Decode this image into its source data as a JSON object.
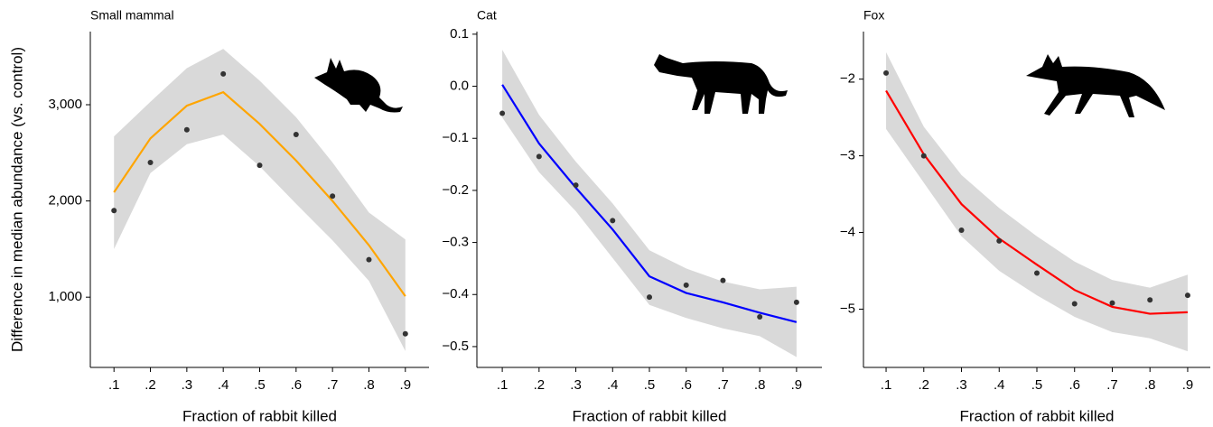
{
  "chart_data": [
    {
      "type": "line",
      "title": "Small mammal",
      "ylabel": "Difference in median abundance (vs. control)",
      "xlabel": "Fraction of rabbit killed",
      "x": [
        0.1,
        0.2,
        0.3,
        0.4,
        0.5,
        0.6,
        0.7,
        0.8,
        0.9
      ],
      "line": {
        "color": "#ffa500",
        "values": [
          2090,
          2650,
          2990,
          3130,
          2800,
          2420,
          2000,
          1540,
          1010
        ]
      },
      "points": {
        "color": "#333333",
        "values": [
          1900,
          2400,
          2740,
          3320,
          2370,
          2690,
          2050,
          1390,
          620
        ]
      },
      "band": {
        "color": "#d9d9d9",
        "upper": [
          2670,
          3030,
          3380,
          3580,
          3250,
          2870,
          2400,
          1880,
          1600
        ],
        "lower": [
          1500,
          2290,
          2590,
          2690,
          2360,
          1970,
          1590,
          1170,
          440
        ]
      },
      "xlim": [
        0.035,
        0.965
      ],
      "ylim": [
        270,
        3760
      ],
      "xticks": [
        {
          "value": 0.1,
          "label": ".1"
        },
        {
          "value": 0.2,
          "label": ".2"
        },
        {
          "value": 0.3,
          "label": ".3"
        },
        {
          "value": 0.4,
          "label": ".4"
        },
        {
          "value": 0.5,
          "label": ".5"
        },
        {
          "value": 0.6,
          "label": ".6"
        },
        {
          "value": 0.7,
          "label": ".7"
        },
        {
          "value": 0.8,
          "label": ".8"
        },
        {
          "value": 0.9,
          "label": ".9"
        }
      ],
      "yticks": [
        {
          "value": 1000,
          "label": "1,000"
        },
        {
          "value": 2000,
          "label": "2,000"
        },
        {
          "value": 3000,
          "label": "3,000"
        }
      ]
    },
    {
      "type": "line",
      "title": "Cat",
      "xlabel": "Fraction of rabbit killed",
      "x": [
        0.1,
        0.2,
        0.3,
        0.4,
        0.5,
        0.6,
        0.7,
        0.8,
        0.9
      ],
      "line": {
        "color": "#0000ff",
        "values": [
          0.003,
          -0.11,
          -0.195,
          -0.275,
          -0.365,
          -0.397,
          -0.415,
          -0.435,
          -0.453
        ]
      },
      "points": {
        "color": "#333333",
        "values": [
          -0.052,
          -0.135,
          -0.19,
          -0.258,
          -0.405,
          -0.382,
          -0.373,
          -0.443,
          -0.415
        ]
      },
      "band": {
        "color": "#d9d9d9",
        "upper": [
          0.07,
          -0.055,
          -0.145,
          -0.225,
          -0.315,
          -0.35,
          -0.375,
          -0.39,
          -0.385
        ],
        "lower": [
          -0.06,
          -0.165,
          -0.24,
          -0.33,
          -0.42,
          -0.445,
          -0.465,
          -0.48,
          -0.52
        ]
      },
      "xlim": [
        0.031,
        0.969
      ],
      "ylim": [
        -0.54,
        0.105
      ],
      "xticks": [
        {
          "value": 0.1,
          "label": ".1"
        },
        {
          "value": 0.2,
          "label": ".2"
        },
        {
          "value": 0.3,
          "label": ".3"
        },
        {
          "value": 0.4,
          "label": ".4"
        },
        {
          "value": 0.5,
          "label": ".5"
        },
        {
          "value": 0.6,
          "label": ".6"
        },
        {
          "value": 0.7,
          "label": ".7"
        },
        {
          "value": 0.8,
          "label": ".8"
        },
        {
          "value": 0.9,
          "label": ".9"
        }
      ],
      "yticks": [
        {
          "value": -0.5,
          "label": "−0.5"
        },
        {
          "value": -0.4,
          "label": "−0.4"
        },
        {
          "value": -0.3,
          "label": "−0.3"
        },
        {
          "value": -0.2,
          "label": "−0.2"
        },
        {
          "value": -0.1,
          "label": "−0.1"
        },
        {
          "value": 0,
          "label": "0.0"
        },
        0.1
      ]
    },
    {
      "type": "line",
      "title": "Fox",
      "xlabel": "Fraction of rabbit killed",
      "x": [
        0.1,
        0.2,
        0.3,
        0.4,
        0.5,
        0.6,
        0.7,
        0.8,
        0.9
      ],
      "line": {
        "color": "#ff0000",
        "values": [
          -2.15,
          -2.98,
          -3.63,
          -4.08,
          -4.42,
          -4.75,
          -4.97,
          -5.06,
          -5.04
        ]
      },
      "points": {
        "color": "#333333",
        "values": [
          -1.92,
          -3.0,
          -3.97,
          -4.11,
          -4.53,
          -4.93,
          -4.92,
          -4.88,
          -4.82
        ]
      },
      "band": {
        "color": "#d9d9d9",
        "upper": [
          -1.65,
          -2.62,
          -3.25,
          -3.68,
          -4.05,
          -4.38,
          -4.62,
          -4.72,
          -4.55
        ],
        "lower": [
          -2.65,
          -3.35,
          -4.05,
          -4.5,
          -4.82,
          -5.1,
          -5.3,
          -5.38,
          -5.55
        ]
      },
      "xlim": [
        0.04,
        0.96
      ],
      "ylim": [
        -5.76,
        -1.38
      ],
      "xticks": [
        {
          "value": 0.1,
          "label": ".1"
        },
        {
          "value": 0.2,
          "label": ".2"
        },
        {
          "value": 0.3,
          "label": ".3"
        },
        {
          "value": 0.4,
          "label": ".4"
        },
        {
          "value": 0.5,
          "label": ".5"
        },
        {
          "value": 0.6,
          "label": ".6"
        },
        {
          "value": 0.7,
          "label": ".7"
        },
        {
          "value": 0.8,
          "label": ".8"
        },
        {
          "value": 0.9,
          "label": ".9"
        }
      ],
      "yticks": [
        {
          "value": -5,
          "label": "−5"
        },
        {
          "value": -4,
          "label": "−4"
        },
        {
          "value": -3,
          "label": "−3"
        },
        {
          "value": -2,
          "label": "−2"
        }
      ]
    }
  ]
}
